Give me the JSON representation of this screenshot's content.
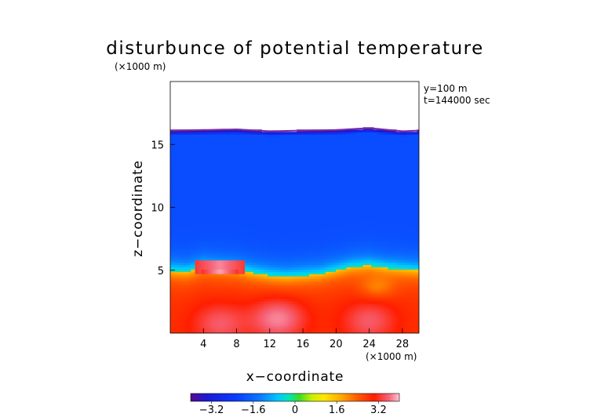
{
  "chart_data": {
    "type": "heatmap",
    "title": "disturbunce of potential temperature",
    "z_unit_label": "(×1000 m)",
    "x_unit_label": "(×1000 m)",
    "xlabel": "x−coordinate",
    "ylabel": "z−coordinate",
    "annotations": [
      "y=100 m",
      "t=144000 sec"
    ],
    "xlim": [
      0,
      30
    ],
    "ylim": [
      0,
      20
    ],
    "x_ticks": [
      4,
      8,
      12,
      16,
      20,
      24,
      28
    ],
    "x_tick_labels": [
      "4",
      "8",
      "12",
      "16",
      "20",
      "24",
      "28"
    ],
    "y_ticks": [
      5,
      10,
      15
    ],
    "y_tick_labels": [
      "5",
      "10",
      "15"
    ],
    "colorbar": {
      "range": [
        -4.0,
        4.0
      ],
      "ticks": [
        -3.2,
        -1.6,
        0,
        1.6,
        3.2
      ],
      "tick_labels": [
        "−3.2",
        "−1.6",
        "0",
        "1.6",
        "3.2"
      ],
      "colors": [
        "#5a0a8c",
        "#1a1ad6",
        "#0a3cff",
        "#0a78ff",
        "#00c8ff",
        "#00e6b4",
        "#3cdc28",
        "#c8f000",
        "#ffe600",
        "#ffaa00",
        "#ff5a00",
        "#ff1e00",
        "#f5647a",
        "#ffc8d2"
      ]
    },
    "field_top_z": 16.1,
    "field_top_x": [
      0,
      4,
      8,
      12,
      16,
      20,
      24,
      28,
      30
    ],
    "field_top_values": [
      16.1,
      16.15,
      16.2,
      16.05,
      16.1,
      16.15,
      16.3,
      16.05,
      16.1
    ],
    "interface_x": [
      0,
      2,
      4,
      6,
      8,
      10,
      12,
      14,
      16,
      18,
      20,
      22,
      24,
      26,
      28,
      30
    ],
    "interface_z": [
      5.0,
      4.9,
      5.3,
      5.2,
      5.1,
      4.8,
      4.6,
      4.5,
      4.6,
      4.7,
      5.0,
      5.3,
      5.4,
      5.2,
      5.1,
      5.0
    ],
    "upper_value": -2.6,
    "lower_value": 2.6,
    "anomaly": {
      "x_range": [
        3,
        9
      ],
      "z_range": [
        4.7,
        5.8
      ],
      "value": 3.8
    },
    "warm_cores": [
      {
        "x": 13,
        "z": 1.2,
        "value": 3.6
      },
      {
        "x": 6,
        "z": 0.8,
        "value": 3.3
      },
      {
        "x": 24,
        "z": 1.0,
        "value": 3.3
      }
    ],
    "moist_patch": {
      "x": 25,
      "z": 3.8,
      "value": 1.6
    }
  }
}
